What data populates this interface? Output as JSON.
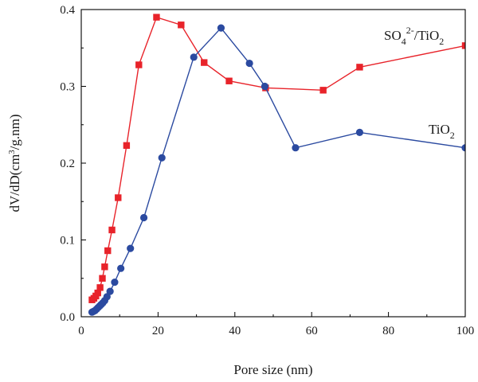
{
  "chart_data": {
    "type": "line",
    "xlabel": "Pore size (nm)",
    "ylabel": "dV/dD(cm³/g.nm)",
    "xlim": [
      0,
      100
    ],
    "ylim": [
      0,
      0.4
    ],
    "xticks": [
      0,
      20,
      40,
      60,
      80,
      100
    ],
    "yticks": [
      0.0,
      0.1,
      0.2,
      0.3,
      0.4
    ],
    "xtick_labels": [
      "0",
      "20",
      "40",
      "60",
      "80",
      "100"
    ],
    "ytick_labels": [
      "0.0",
      "0.1",
      "0.2",
      "0.3",
      "0.4"
    ],
    "grid": false,
    "legend": "inline",
    "series": [
      {
        "name": "SO₄²⁻/TiO₂",
        "color": "#e8232a",
        "marker": "square",
        "x": [
          2.8,
          3.3,
          3.8,
          4.3,
          4.9,
          5.5,
          6.1,
          6.9,
          8.0,
          9.6,
          11.8,
          15.0,
          19.6,
          26.0,
          32.0,
          38.5,
          48.0,
          63.0,
          72.5,
          100
        ],
        "y": [
          0.022,
          0.024,
          0.027,
          0.031,
          0.038,
          0.05,
          0.065,
          0.086,
          0.113,
          0.155,
          0.223,
          0.328,
          0.39,
          0.38,
          0.331,
          0.307,
          0.298,
          0.295,
          0.325,
          0.353
        ]
      },
      {
        "name": "TiO₂",
        "color": "#2b4aa0",
        "marker": "circle",
        "x": [
          2.8,
          3.2,
          3.6,
          4.0,
          4.4,
          4.8,
          5.2,
          5.6,
          6.1,
          6.7,
          7.5,
          8.7,
          10.3,
          12.8,
          16.3,
          21.0,
          29.3,
          36.4,
          43.8,
          47.8,
          55.8,
          72.5,
          100
        ],
        "y": [
          0.006,
          0.007,
          0.008,
          0.01,
          0.012,
          0.014,
          0.016,
          0.018,
          0.021,
          0.026,
          0.033,
          0.045,
          0.063,
          0.089,
          0.129,
          0.207,
          0.338,
          0.376,
          0.33,
          0.3,
          0.22,
          0.24,
          0.22
        ]
      }
    ],
    "labels": {
      "so4_main": "SO",
      "so4_sub1": "4",
      "so4_sup": "2-",
      "so4_rest": "/TiO",
      "so4_sub2": "2",
      "tio2_main": "TiO",
      "tio2_sub": "2"
    }
  }
}
